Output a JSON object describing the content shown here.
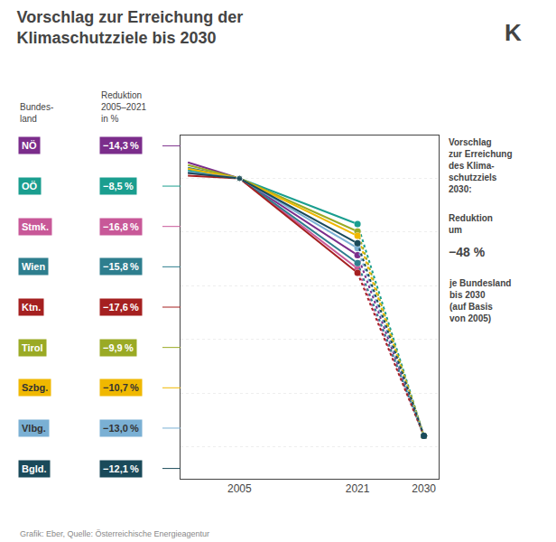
{
  "chart_data": {
    "type": "line",
    "title": "Vorschlag zur Erreichung der\nKlimaschutzziele bis 2030",
    "x": [
      1998,
      2005,
      2021,
      2030
    ],
    "series": [
      {
        "name": "NÖ",
        "color": "#7b2d8b",
        "values": [
          3.0,
          0,
          -14.3,
          -48
        ],
        "value_labels": [
          null,
          null,
          "−14,3 %",
          null
        ]
      },
      {
        "name": "OÖ",
        "color": "#1a9e8f",
        "values": [
          1.5,
          0,
          -8.5,
          -48
        ],
        "value_labels": [
          null,
          null,
          "−8,5 %",
          null
        ]
      },
      {
        "name": "Stmk.",
        "color": "#c85898",
        "values": [
          1.0,
          0,
          -16.8,
          -48
        ],
        "value_labels": [
          null,
          null,
          "−16,8 %",
          null
        ]
      },
      {
        "name": "Wien",
        "color": "#2e7e8e",
        "values": [
          2.0,
          0,
          -15.8,
          -48
        ],
        "value_labels": [
          null,
          null,
          "−15,8 %",
          null
        ]
      },
      {
        "name": "Ktn.",
        "color": "#a52020",
        "values": [
          0.5,
          0,
          -17.6,
          -48
        ],
        "value_labels": [
          null,
          null,
          "−17,6 %",
          null
        ]
      },
      {
        "name": "Tirol",
        "color": "#9aaa25",
        "values": [
          2.5,
          0,
          -9.9,
          -48
        ],
        "value_labels": [
          null,
          null,
          "−9,9 %",
          null
        ]
      },
      {
        "name": "Szbg.",
        "color": "#f0b800",
        "values": [
          1.8,
          0,
          -10.7,
          -48
        ],
        "value_labels": [
          null,
          null,
          "−10,7 %",
          null
        ]
      },
      {
        "name": "Vlbg.",
        "color": "#7ab0d4",
        "values": [
          1.2,
          0,
          -13.0,
          -48
        ],
        "value_labels": [
          null,
          null,
          "−13,0 %",
          null
        ]
      },
      {
        "name": "Bgld.",
        "color": "#1a4a5a",
        "values": [
          1.0,
          0,
          -12.1,
          -48
        ],
        "value_labels": [
          null,
          null,
          "−12,1 %",
          null
        ]
      }
    ],
    "xlim": [
      1997,
      2032
    ],
    "xticks": [
      2005,
      2021,
      2030
    ],
    "ylim": [
      -56,
      8
    ],
    "yticks": [
      -50,
      -40,
      -30,
      -20,
      -10,
      0
    ],
    "grid": true,
    "tick_labels": "x",
    "marker": "circle",
    "annotations": [
      "Bundes-\nland",
      "Reduktion\n2005–2021\nin %",
      "Vorschlag\nzur Erreichung\ndes Klima-\nschutzziels\n2030:",
      "Reduktion\num",
      "−48 %",
      "je Bundesland\nbis 2030\n(auf Basis\nvon 2005)",
      "K",
      "Grafik: Eber, Quelle: Österreichische Energieagentur"
    ]
  }
}
